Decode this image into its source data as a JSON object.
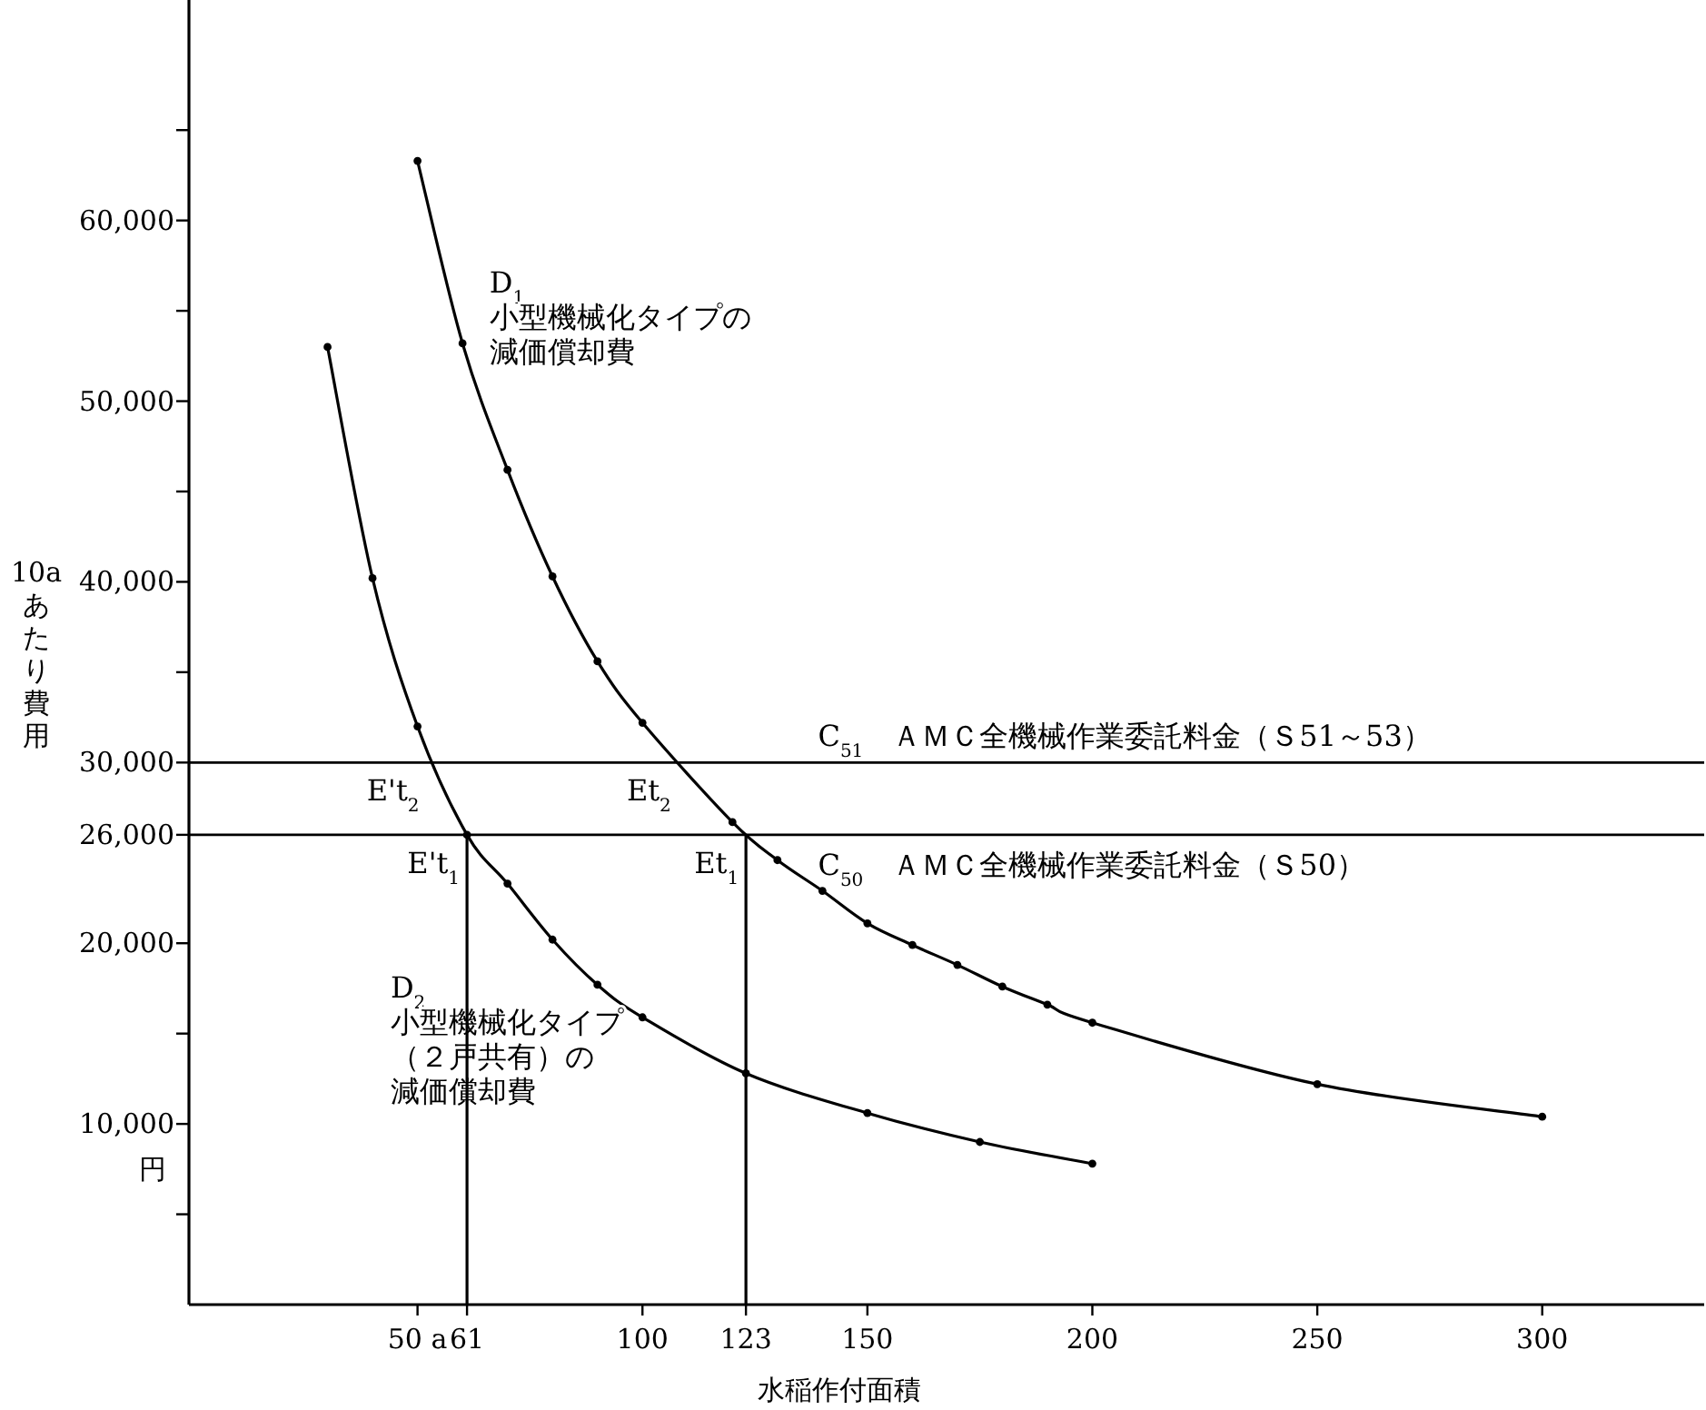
{
  "chart_data": {
    "type": "line",
    "xlabel": "水稲作付面積",
    "ylabel": "10aあたり費用",
    "xlim": [
      0,
      336
    ],
    "ylim": [
      0,
      72000
    ],
    "xticks": [
      {
        "value": 50,
        "label": "50 a"
      },
      61,
      100,
      123,
      150,
      200,
      250,
      300
    ],
    "yticks": [
      {
        "value": 5000,
        "label": null
      },
      {
        "value": 10000,
        "label": "10,000"
      },
      {
        "value": 15000,
        "label": null
      },
      {
        "value": 20000,
        "label": "20,000"
      },
      {
        "value": 26000,
        "label": "26,000"
      },
      {
        "value": 30000,
        "label": "30,000"
      },
      {
        "value": 35000,
        "label": null
      },
      {
        "value": 40000,
        "label": "40,000"
      },
      {
        "value": 45000,
        "label": null
      },
      {
        "value": 50000,
        "label": "50,000"
      },
      {
        "value": 55000,
        "label": null
      },
      {
        "value": 60000,
        "label": "60,000"
      },
      {
        "value": 65000,
        "label": null
      }
    ],
    "grid": false,
    "marker": "circle",
    "line_style": "solid",
    "series": [
      {
        "name": "D$_{1}$小型機械化タイプの減価償却費",
        "color": "#000000",
        "x": [
          50,
          60,
          70,
          80,
          90,
          100,
          120,
          130,
          140,
          150,
          160,
          170,
          180,
          190,
          200,
          250,
          300
        ],
        "values": [
          63300,
          53200,
          46200,
          40300,
          35600,
          32200,
          26700,
          24600,
          22900,
          21100,
          19900,
          18800,
          17600,
          16600,
          15600,
          12200,
          10400
        ]
      },
      {
        "name": "D$_{2}$小型機械化タイプ（２戸共有）の減価償却費",
        "color": "#000000",
        "x": [
          30,
          40,
          50,
          61,
          70,
          80,
          90,
          100,
          123,
          150,
          175,
          200
        ],
        "values": [
          53000,
          40200,
          32000,
          26000,
          23300,
          20200,
          17700,
          15900,
          12800,
          10600,
          9000,
          7800
        ]
      },
      {
        "type": "line",
        "marker": "none",
        "color": "#000000",
        "x": [
          61,
          61
        ],
        "values": [
          0,
          26000
        ]
      },
      {
        "type": "line",
        "marker": "none",
        "color": "#000000",
        "x": [
          123,
          123
        ],
        "values": [
          0,
          26000
        ]
      }
    ],
    "ref_lines": [
      {
        "axis": "y",
        "value": 30000,
        "label": "C$_{51}$　ＡＭＣ全機械作業委託料金（Ｓ51～53）",
        "color": "#000000"
      },
      {
        "axis": "y",
        "value": 26000,
        "label": "C$_{50}$　ＡＭＣ全機械作業委託料金（Ｓ50）",
        "color": "#000000"
      }
    ],
    "annotations": [
      {
        "text": "E't$_{2}$",
        "x": 52,
        "y": 30000
      },
      {
        "text": "E't$_{1}$",
        "x": 61,
        "y": 26000
      },
      {
        "text": "Et$_{2}$",
        "x": 108,
        "y": 30000
      },
      {
        "text": "Et$_{1}$",
        "x": 123,
        "y": 26000
      },
      "円"
    ]
  }
}
